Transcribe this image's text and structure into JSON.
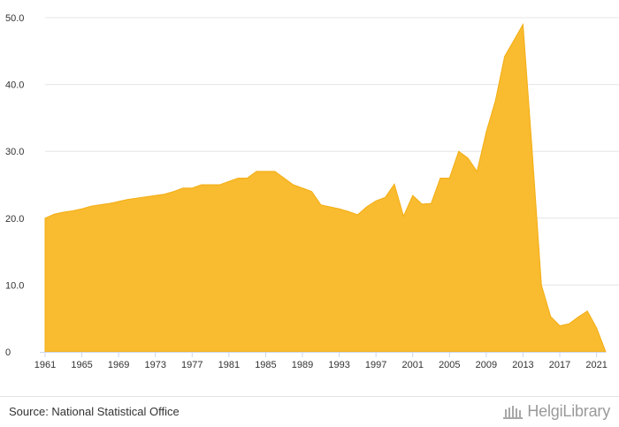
{
  "chart_data": {
    "type": "area",
    "title": "",
    "xlabel": "",
    "ylabel": "",
    "xlim": [
      1961,
      2022
    ],
    "ylim": [
      0,
      50
    ],
    "y_ticks": [
      "0",
      "10.0",
      "20.0",
      "30.0",
      "40.0",
      "50.0"
    ],
    "x_ticks": [
      "1961",
      "1965",
      "1969",
      "1973",
      "1977",
      "1981",
      "1985",
      "1989",
      "1993",
      "1997",
      "2001",
      "2005",
      "2009",
      "2013",
      "2017",
      "2021"
    ],
    "grid": true,
    "fill_color": "#f9bb2f",
    "series": [
      {
        "x": [
          1961,
          1962,
          1963,
          1964,
          1965,
          1966,
          1967,
          1968,
          1969,
          1970,
          1971,
          1972,
          1973,
          1974,
          1975,
          1976,
          1977,
          1978,
          1979,
          1980,
          1981,
          1982,
          1983,
          1984,
          1985,
          1986,
          1987,
          1988,
          1989,
          1990,
          1991,
          1992,
          1993,
          1994,
          1995,
          1996,
          1997,
          1998,
          1999,
          2000,
          2001,
          2002,
          2003,
          2004,
          2005,
          2006,
          2007,
          2008,
          2009,
          2010,
          2011,
          2012,
          2013,
          2014,
          2015,
          2016,
          2017,
          2018,
          2019,
          2020,
          2021,
          2022
        ],
        "values": [
          20.0,
          20.6,
          20.9,
          21.1,
          21.4,
          21.8,
          22.0,
          22.2,
          22.5,
          22.8,
          23.0,
          23.2,
          23.4,
          23.6,
          24.0,
          24.5,
          24.5,
          25.0,
          25.0,
          25.0,
          25.5,
          26.0,
          26.0,
          27.0,
          27.0,
          27.0,
          26.0,
          25.0,
          24.5,
          24.0,
          22.0,
          21.7,
          21.4,
          21.0,
          20.5,
          21.7,
          22.6,
          23.1,
          25.1,
          20.3,
          23.4,
          22.1,
          22.2,
          26.0,
          26.0,
          30.0,
          29.0,
          27.0,
          32.9,
          37.6,
          44.2,
          46.6,
          49.0,
          30.0,
          10.0,
          5.3,
          3.9,
          4.2,
          5.2,
          6.1,
          3.6,
          0
        ]
      }
    ]
  },
  "footer": {
    "source": "Source: National Statistical Office",
    "brand": "HelgiLibrary"
  }
}
